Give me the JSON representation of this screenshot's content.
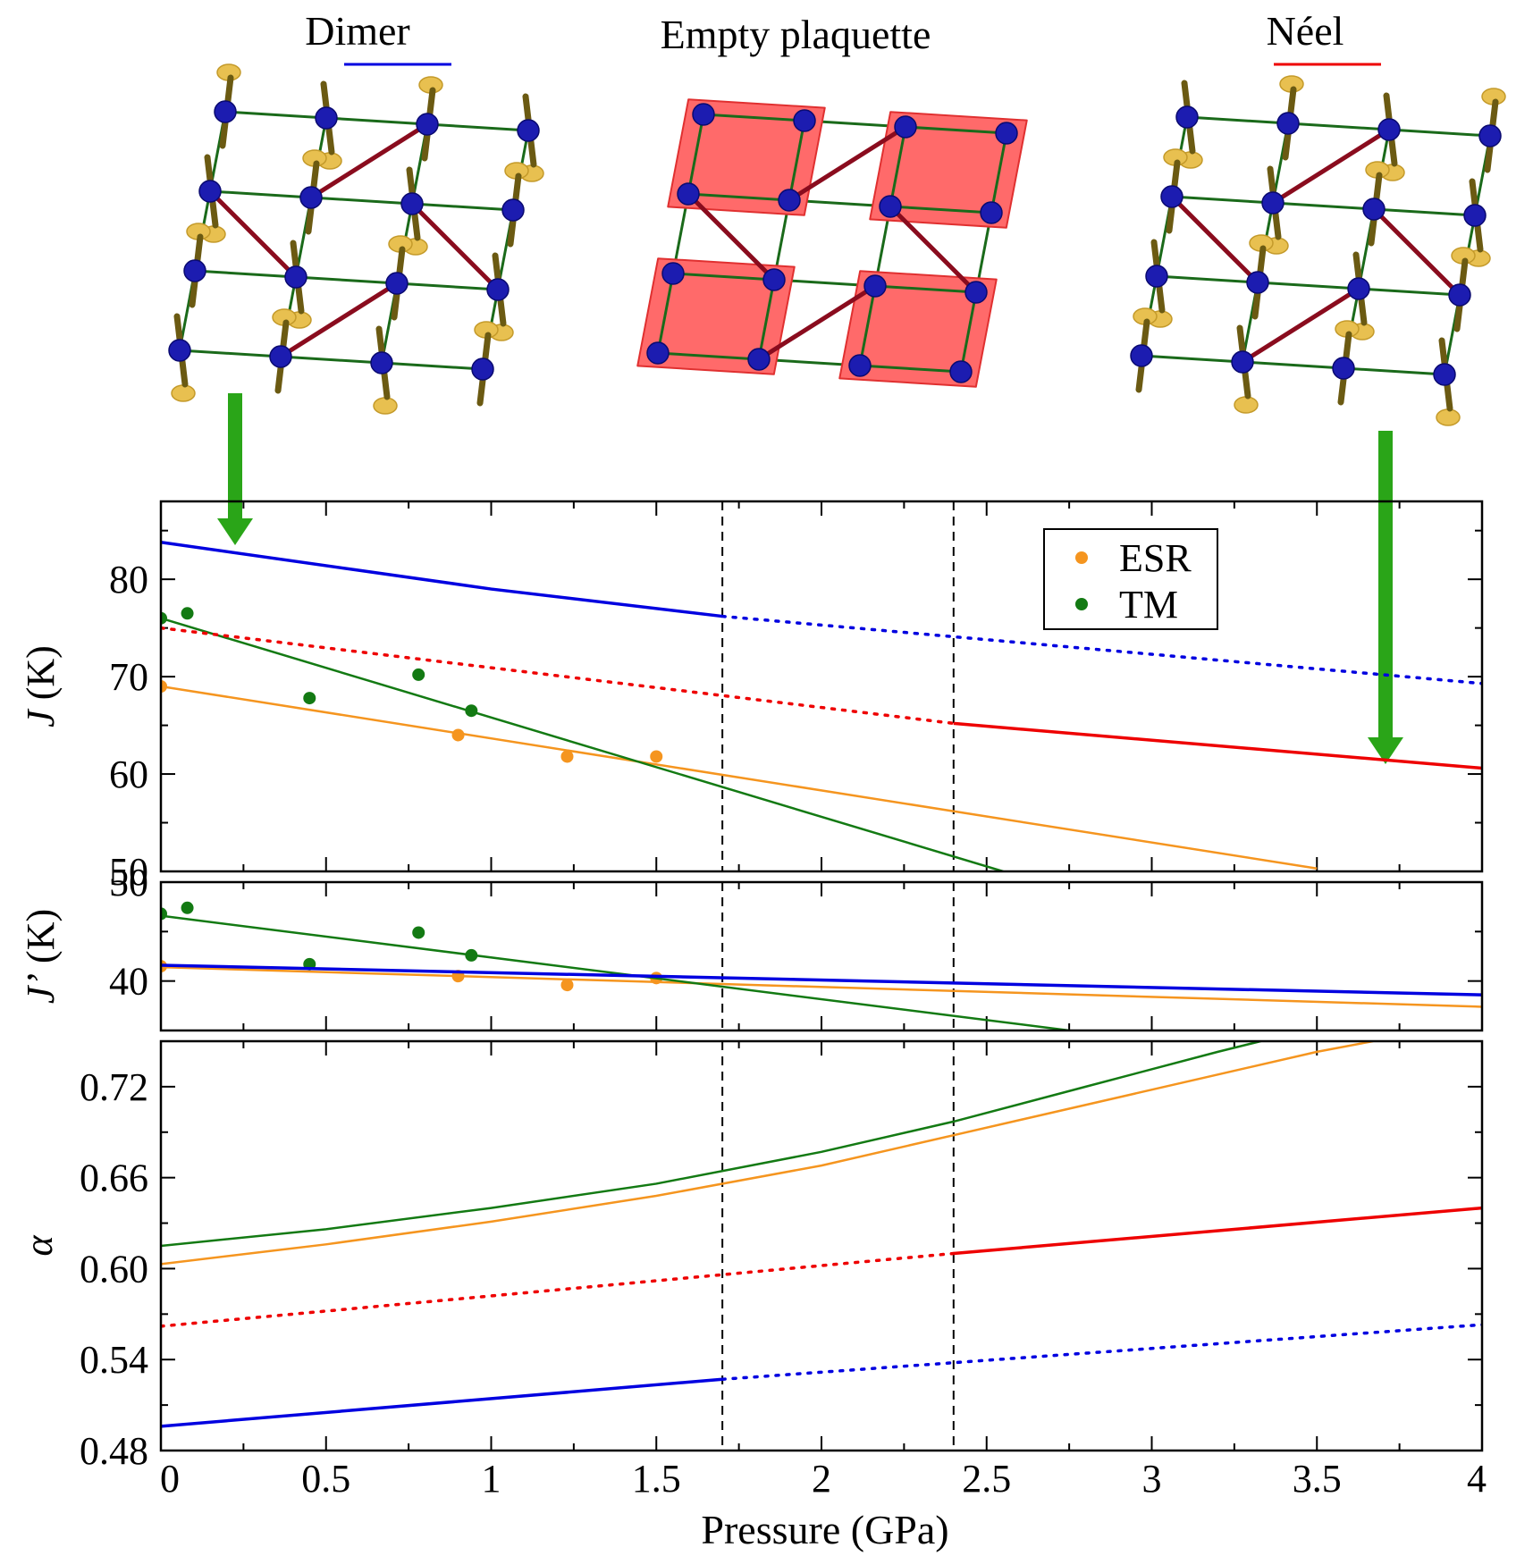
{
  "phase_titles": {
    "dimer": "Dimer",
    "plaquette": "Empty plaquette",
    "neel": "Néel"
  },
  "colors": {
    "dimer": "#0000e0",
    "neel": "#ee0000",
    "esr": "#f5951f",
    "tm": "#137a13",
    "arrow": "#2aa518",
    "bond_square": "#1a6a1a",
    "bond_diagonal": "#8a0c1e",
    "atom": "#1c1cb0",
    "spin": "#6b5a12",
    "plaquette_fill": "#ff6a6a"
  },
  "chart_data": [
    {
      "type": "line",
      "panel": "top",
      "ylabel_main": "J",
      "ylabel_unit": " (K)",
      "xlim": [
        0,
        4
      ],
      "ylim": [
        50,
        88
      ],
      "yticks": [
        50,
        60,
        70,
        80
      ],
      "legend": {
        "placement": "top-right",
        "entries": [
          "ESR",
          "TM"
        ]
      },
      "phase_boundaries": [
        1.7,
        2.4
      ],
      "series": [
        {
          "name": "ESR",
          "kind": "points",
          "color": "esr",
          "x": [
            0,
            0.9,
            1.23,
            1.5
          ],
          "y": [
            69,
            64,
            61.8,
            61.8
          ]
        },
        {
          "name": "TM",
          "kind": "points",
          "color": "tm",
          "x": [
            0,
            0.08,
            0.45,
            0.78,
            0.94
          ],
          "y": [
            76,
            76.5,
            67.8,
            70.2,
            66.5
          ]
        },
        {
          "kind": "line",
          "color": "esr",
          "x": [
            0,
            3.5
          ],
          "y": [
            69,
            50.3
          ]
        },
        {
          "kind": "line",
          "color": "tm",
          "x": [
            0,
            2.55
          ],
          "y": [
            76,
            50
          ]
        },
        {
          "kind": "line",
          "color": "dimer",
          "x": [
            0,
            1,
            1.7
          ],
          "y": [
            83.8,
            79,
            76.2
          ]
        },
        {
          "kind": "dotted",
          "color": "dimer",
          "x": [
            1.7,
            4
          ],
          "y": [
            76.2,
            69.3
          ]
        },
        {
          "kind": "dotted",
          "color": "neel",
          "x": [
            0,
            2.4
          ],
          "y": [
            75,
            65.2
          ]
        },
        {
          "kind": "line",
          "color": "neel",
          "x": [
            2.4,
            4
          ],
          "y": [
            65.2,
            60.6
          ]
        }
      ]
    },
    {
      "type": "line",
      "panel": "middle",
      "ylabel_main": "J’",
      "ylabel_unit": " (K)",
      "xlim": [
        0,
        4
      ],
      "ylim": [
        35,
        50
      ],
      "yticks": [
        40,
        50
      ],
      "phase_boundaries": [
        1.7,
        2.4
      ],
      "series": [
        {
          "name": "ESR",
          "kind": "points",
          "color": "esr",
          "x": [
            0,
            0.9,
            1.23,
            1.5
          ],
          "y": [
            41.5,
            40.5,
            39.6,
            40.3
          ]
        },
        {
          "name": "TM",
          "kind": "points",
          "color": "tm",
          "x": [
            0,
            0.08,
            0.45,
            0.78,
            0.94
          ],
          "y": [
            46.8,
            47.4,
            41.7,
            44.9,
            42.6
          ]
        },
        {
          "kind": "line",
          "color": "esr",
          "x": [
            0,
            4
          ],
          "y": [
            41.4,
            37.4
          ]
        },
        {
          "kind": "line",
          "color": "tm",
          "x": [
            0,
            2.75
          ],
          "y": [
            46.6,
            35
          ]
        },
        {
          "kind": "line",
          "color": "dimer",
          "x": [
            0,
            4
          ],
          "y": [
            41.6,
            38.6
          ]
        }
      ]
    },
    {
      "type": "line",
      "panel": "bottom",
      "ylabel_main": "α",
      "xlabel": "Pressure (GPa)",
      "xlim": [
        0,
        4
      ],
      "ylim": [
        0.48,
        0.75
      ],
      "yticks": [
        0.48,
        0.54,
        0.6,
        0.66,
        0.72
      ],
      "ytick_labels": [
        "0.48",
        "0.54",
        "0.60",
        "0.66",
        "0.72"
      ],
      "xticks": [
        0,
        0.5,
        1,
        1.5,
        2,
        2.5,
        3,
        3.5,
        4
      ],
      "xtick_labels": [
        "0",
        "0.5",
        "1",
        "1.5",
        "2",
        "2.5",
        "3",
        "3.5",
        "4"
      ],
      "phase_boundaries": [
        1.7,
        2.4
      ],
      "series": [
        {
          "kind": "line",
          "color": "tm",
          "x": [
            0,
            0.5,
            1,
            1.5,
            2,
            2.4,
            2.8,
            3.2,
            3.33
          ],
          "y": [
            0.615,
            0.626,
            0.64,
            0.656,
            0.677,
            0.697,
            0.72,
            0.743,
            0.75
          ]
        },
        {
          "kind": "line",
          "color": "esr",
          "x": [
            0,
            0.5,
            1,
            1.5,
            2,
            2.4,
            2.8,
            3.2,
            3.5,
            3.67
          ],
          "y": [
            0.603,
            0.616,
            0.631,
            0.648,
            0.668,
            0.688,
            0.708,
            0.728,
            0.743,
            0.75
          ]
        },
        {
          "kind": "dotted",
          "color": "neel",
          "x": [
            0,
            2.4
          ],
          "y": [
            0.562,
            0.61
          ]
        },
        {
          "kind": "line",
          "color": "neel",
          "x": [
            2.4,
            4
          ],
          "y": [
            0.61,
            0.64
          ]
        },
        {
          "kind": "line",
          "color": "dimer",
          "x": [
            0,
            1.7
          ],
          "y": [
            0.496,
            0.527
          ]
        },
        {
          "kind": "dotted",
          "color": "dimer",
          "x": [
            1.7,
            4
          ],
          "y": [
            0.527,
            0.563
          ]
        }
      ]
    }
  ]
}
